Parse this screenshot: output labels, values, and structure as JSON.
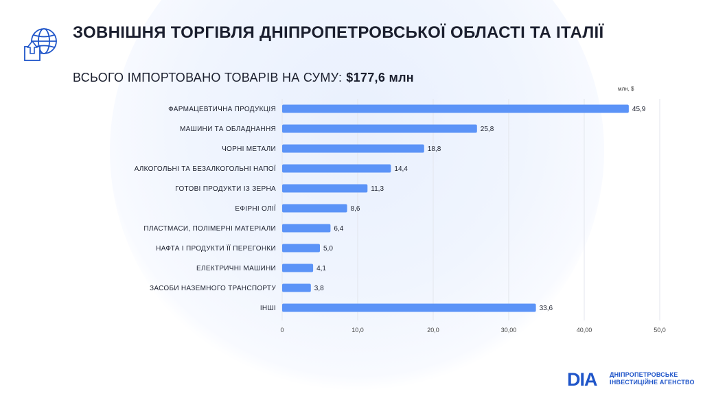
{
  "title": "ЗОВНІШНЯ ТОРГІВЛЯ ДНІПРОПЕТРОВСЬКОЇ ОБЛАСТІ ТА ІТАЛІЇ",
  "subtitle": {
    "label": "ВСЬОГО ІМПОРТОВАНО ТОВАРІВ НА СУМУ:",
    "amount": "$177,6 млн"
  },
  "icons": {
    "header": "globe-box-arrow-icon"
  },
  "brand": {
    "mark": "DIA",
    "name_line1": "ДНІПРОПЕТРОВСЬКЕ",
    "name_line2": "ІНВЕСТИЦІЙНЕ АГЕНСТВО"
  },
  "colors": {
    "bar": "#5b93f7",
    "brand": "#1f55c9",
    "text": "#1b1f2e"
  },
  "chart_data": {
    "type": "bar",
    "orientation": "horizontal",
    "unit_label": "млн, $",
    "categories": [
      "ФАРМАЦЕВТИЧНА ПРОДУКЦІЯ",
      "МАШИНИ ТА ОБЛАДНАННЯ",
      "ЧОРНІ МЕТАЛИ",
      "АЛКОГОЛЬНІ ТА БЕЗАЛКОГОЛЬНІ НАПОЇ",
      "ГОТОВІ ПРОДУКТИ ІЗ ЗЕРНА",
      "ЕФІРНІ ОЛІЇ",
      "ПЛАСТМАСИ, ПОЛІМЕРНІ МАТЕРІАЛИ",
      "НАФТА І ПРОДУКТИ ЇЇ ПЕРЕГОНКИ",
      "ЕЛЕКТРИЧНІ МАШИНИ",
      "ЗАСОБИ НАЗЕМНОГО ТРАНСПОРТУ",
      "ІНШІ"
    ],
    "values": [
      45.9,
      25.8,
      18.8,
      14.4,
      11.3,
      8.6,
      6.4,
      5.0,
      4.1,
      3.8,
      33.6
    ],
    "value_labels": [
      "45,9",
      "25,8",
      "18,8",
      "14,4",
      "11,3",
      "8,6",
      "6,4",
      "5,0",
      "4,1",
      "3,8",
      "33,6"
    ],
    "xlim": [
      0,
      50
    ],
    "x_ticks": [
      0,
      10,
      20,
      30,
      40,
      50
    ],
    "x_tick_labels": [
      "0",
      "10,0",
      "20,0",
      "30,00",
      "40,00",
      "50,0"
    ],
    "grid": true
  }
}
